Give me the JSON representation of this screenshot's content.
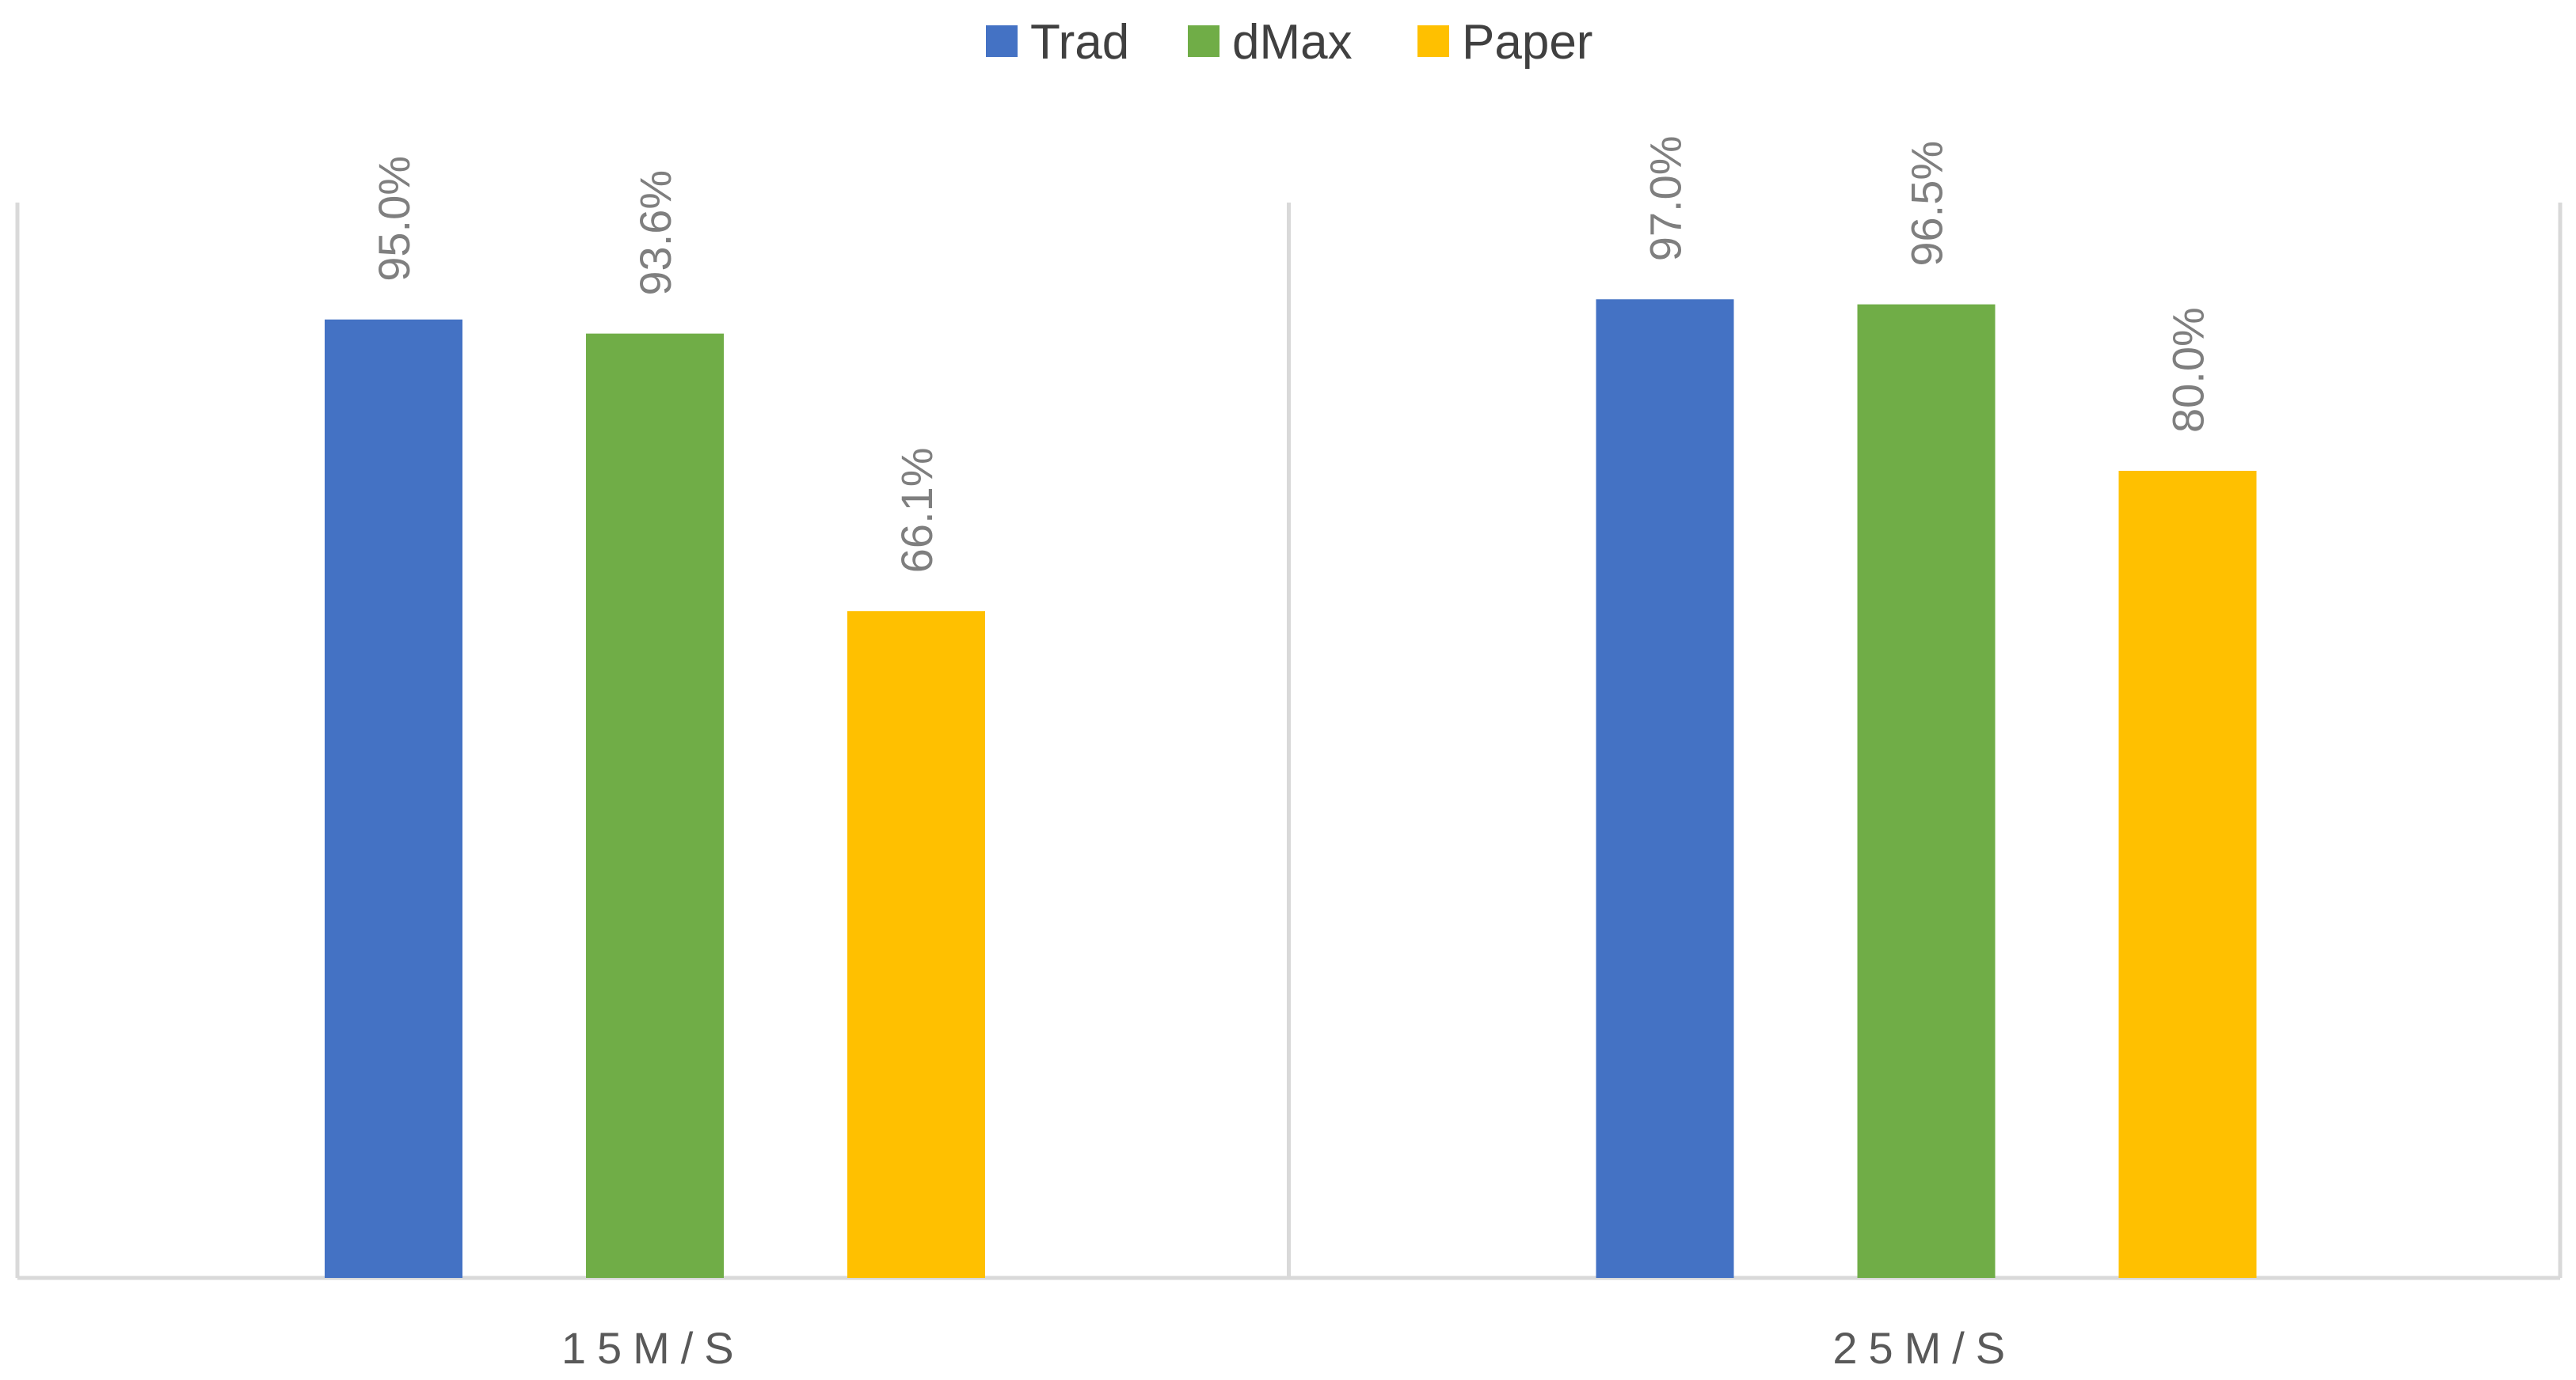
{
  "chart_data": {
    "type": "bar",
    "title": "",
    "xlabel": "",
    "ylabel": "",
    "categories": [
      "15M/S",
      "25M/S"
    ],
    "series": [
      {
        "name": "Trad",
        "values": [
          95.0,
          97.0
        ],
        "labels": [
          "95.0%",
          "97.0%"
        ],
        "color": "#4472C4"
      },
      {
        "name": "dMax",
        "values": [
          93.6,
          96.5
        ],
        "labels": [
          "93.6%",
          "96.5%"
        ],
        "color": "#70AD47"
      },
      {
        "name": "Paper",
        "values": [
          66.1,
          80.0
        ],
        "labels": [
          "66.1%",
          "80.0%"
        ],
        "color": "#FFC000"
      }
    ],
    "unit": "%",
    "ylim": [
      0,
      100
    ],
    "grid": false,
    "legend_position": "top-center",
    "data_labels": "rotated-above-bars",
    "category_separators": true
  }
}
